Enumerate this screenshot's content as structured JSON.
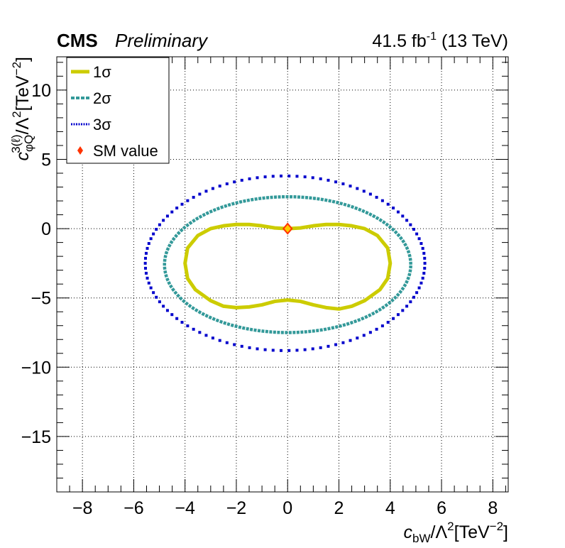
{
  "header": {
    "experiment": "CMS",
    "status": "Preliminary",
    "lumi_value": "41.5 fb",
    "lumi_exp": "-1",
    "energy": " (13 TeV)"
  },
  "chart_data": {
    "type": "scatter",
    "xlim": [
      -9,
      8.6
    ],
    "ylim": [
      -19,
      12.4
    ],
    "grid": true,
    "legend_position": "top-left",
    "xaxis": {
      "label_base": "c",
      "label_sub": "bW",
      "label_rest": "/Λ",
      "label_sup": "2",
      "label_unit": "[TeV",
      "label_unit_sup": "−2",
      "label_close": "]",
      "ticks": [
        -8,
        -6,
        -4,
        -2,
        0,
        2,
        4,
        6,
        8
      ],
      "tick_labels": [
        "−8",
        "−6",
        "−4",
        "−2",
        "0",
        "2",
        "4",
        "6",
        "8"
      ]
    },
    "yaxis": {
      "label_base": "c",
      "label_sub": "φQ",
      "label_sup": "3(ℓ)",
      "label_rest": "/Λ",
      "label_sup2": "2",
      "label_unit": "[TeV",
      "label_unit_sup": "−2",
      "label_close": "]",
      "ticks": [
        10,
        5,
        0,
        -5,
        -10,
        -15
      ],
      "tick_labels": [
        "10",
        "5",
        "0",
        "−5",
        "−10",
        "−15"
      ]
    },
    "series": [
      {
        "name": "1σ",
        "color": "#cccc00",
        "style": "solid",
        "points": [
          [
            0,
            0
          ],
          [
            0.5,
            0.05
          ],
          [
            1.0,
            0.2
          ],
          [
            1.5,
            0.3
          ],
          [
            2.0,
            0.3
          ],
          [
            2.5,
            0.2
          ],
          [
            3.0,
            0.0
          ],
          [
            3.5,
            -0.5
          ],
          [
            3.9,
            -1.4
          ],
          [
            4.0,
            -2.5
          ],
          [
            3.9,
            -3.6
          ],
          [
            3.6,
            -4.4
          ],
          [
            3.0,
            -5.2
          ],
          [
            2.5,
            -5.6
          ],
          [
            2.0,
            -5.8
          ],
          [
            1.5,
            -5.7
          ],
          [
            1.0,
            -5.5
          ],
          [
            0.5,
            -5.25
          ],
          [
            0,
            -5.15
          ],
          [
            -0.5,
            -5.25
          ],
          [
            -1.0,
            -5.5
          ],
          [
            -1.5,
            -5.65
          ],
          [
            -2.0,
            -5.7
          ],
          [
            -2.5,
            -5.6
          ],
          [
            -3.0,
            -5.2
          ],
          [
            -3.6,
            -4.4
          ],
          [
            -3.9,
            -3.6
          ],
          [
            -4.0,
            -2.5
          ],
          [
            -3.9,
            -1.4
          ],
          [
            -3.5,
            -0.5
          ],
          [
            -3.0,
            0.0
          ],
          [
            -2.5,
            0.2
          ],
          [
            -2.0,
            0.3
          ],
          [
            -1.5,
            0.3
          ],
          [
            -1.0,
            0.2
          ],
          [
            -0.5,
            0.05
          ],
          [
            0,
            0
          ]
        ]
      },
      {
        "name": "2σ",
        "color": "#339999",
        "style": "dashed",
        "center": [
          0,
          -2.6
        ],
        "radii": [
          4.8,
          4.9
        ]
      },
      {
        "name": "3σ",
        "color": "#0000cc",
        "style": "dotted",
        "center": [
          -0.1,
          -2.5
        ],
        "radii": [
          5.45,
          6.3
        ]
      },
      {
        "name": "SM value",
        "color": "#ff3300",
        "fill": "#ffcc00",
        "style": "marker",
        "points": [
          [
            0,
            0
          ]
        ]
      }
    ]
  }
}
